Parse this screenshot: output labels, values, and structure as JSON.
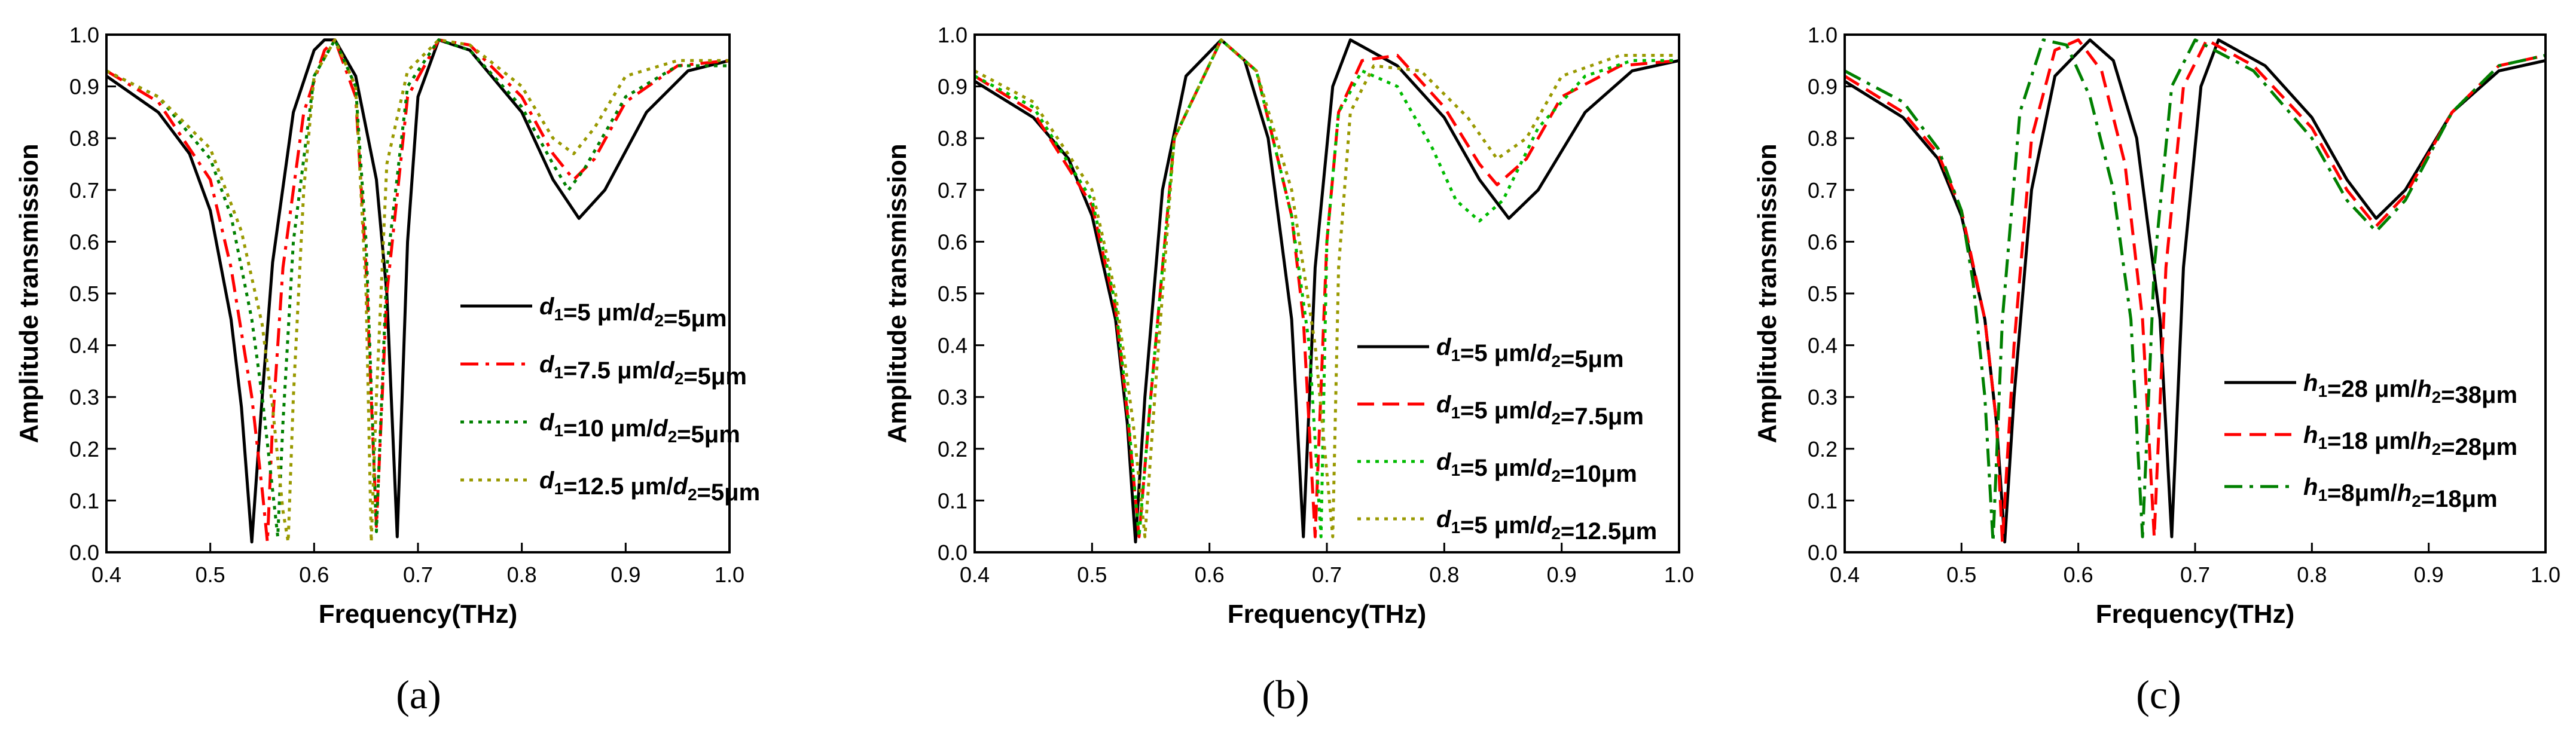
{
  "chart_data": [
    {
      "type": "line",
      "panel_label": "(a)",
      "xlabel": "Frequency(THz)",
      "ylabel": "Amplitude transmission",
      "xlim": [
        0.4,
        1.0
      ],
      "ylim": [
        0.0,
        1.0
      ],
      "xticks": [
        "0.4",
        "0.5",
        "0.6",
        "0.7",
        "0.8",
        "0.9",
        "1.0"
      ],
      "yticks": [
        "0.0",
        "0.1",
        "0.2",
        "0.3",
        "0.4",
        "0.5",
        "0.6",
        "0.7",
        "0.8",
        "0.9",
        "1.0"
      ],
      "legend_position": "center-right",
      "series": [
        {
          "name": "d1=5 μm/d2=5μm",
          "legend": {
            "v1": "d",
            "s1": "1",
            "t1": "=5 μm/",
            "v2": "d",
            "s2": "2",
            "t2": "=5μm"
          },
          "color": "#000000",
          "dash": "solid",
          "x": [
            0.4,
            0.45,
            0.48,
            0.5,
            0.52,
            0.53,
            0.54,
            0.55,
            0.56,
            0.58,
            0.6,
            0.61,
            0.62,
            0.64,
            0.66,
            0.67,
            0.68,
            0.69,
            0.7,
            0.72,
            0.75,
            0.8,
            0.83,
            0.855,
            0.88,
            0.92,
            0.96,
            1.0
          ],
          "y": [
            0.92,
            0.85,
            0.77,
            0.66,
            0.45,
            0.28,
            0.02,
            0.3,
            0.56,
            0.85,
            0.97,
            0.99,
            0.99,
            0.92,
            0.72,
            0.5,
            0.03,
            0.6,
            0.88,
            0.99,
            0.97,
            0.85,
            0.72,
            0.645,
            0.7,
            0.85,
            0.93,
            0.95
          ]
        },
        {
          "name": "d1=7.5 μm/d2=5μm",
          "legend": {
            "v1": "d",
            "s1": "1",
            "t1": "=7.5 μm/",
            "v2": "d",
            "s2": "2",
            "t2": "=5μm"
          },
          "color": "#ff0000",
          "dash": "dashdot",
          "x": [
            0.4,
            0.45,
            0.5,
            0.52,
            0.54,
            0.55,
            0.555,
            0.56,
            0.57,
            0.59,
            0.61,
            0.62,
            0.64,
            0.65,
            0.66,
            0.67,
            0.69,
            0.72,
            0.75,
            0.8,
            0.83,
            0.85,
            0.87,
            0.9,
            0.95,
            1.0
          ],
          "y": [
            0.93,
            0.87,
            0.72,
            0.55,
            0.3,
            0.12,
            0.02,
            0.25,
            0.55,
            0.85,
            0.97,
            0.99,
            0.88,
            0.55,
            0.05,
            0.5,
            0.88,
            0.99,
            0.98,
            0.88,
            0.77,
            0.72,
            0.76,
            0.87,
            0.94,
            0.95
          ]
        },
        {
          "name": "d1=10 μm/d2=5μm",
          "legend": {
            "v1": "d",
            "s1": "1",
            "t1": "=10 μm/",
            "v2": "d",
            "s2": "2",
            "t2": "=5μm"
          },
          "color": "#008000",
          "dash": "dotted",
          "x": [
            0.4,
            0.45,
            0.5,
            0.52,
            0.54,
            0.55,
            0.56,
            0.565,
            0.57,
            0.58,
            0.6,
            0.62,
            0.64,
            0.65,
            0.66,
            0.67,
            0.69,
            0.72,
            0.75,
            0.8,
            0.83,
            0.845,
            0.86,
            0.9,
            0.95,
            1.0
          ],
          "y": [
            0.93,
            0.88,
            0.76,
            0.65,
            0.45,
            0.3,
            0.12,
            0.03,
            0.25,
            0.6,
            0.92,
            0.99,
            0.9,
            0.6,
            0.04,
            0.55,
            0.9,
            0.99,
            0.97,
            0.86,
            0.75,
            0.7,
            0.74,
            0.88,
            0.94,
            0.94
          ]
        },
        {
          "name": "d1=12.5 μm/d2=5μm",
          "legend": {
            "v1": "d",
            "s1": "1",
            "t1": "=12.5 μm/",
            "v2": "d",
            "s2": "2",
            "t2": "=5μm"
          },
          "color": "#999900",
          "dash": "dotted",
          "x": [
            0.4,
            0.45,
            0.5,
            0.53,
            0.55,
            0.56,
            0.57,
            0.575,
            0.58,
            0.59,
            0.6,
            0.62,
            0.64,
            0.65,
            0.655,
            0.66,
            0.67,
            0.69,
            0.72,
            0.75,
            0.8,
            0.83,
            0.85,
            0.87,
            0.9,
            0.95,
            1.0
          ],
          "y": [
            0.93,
            0.88,
            0.78,
            0.62,
            0.44,
            0.28,
            0.08,
            0.02,
            0.3,
            0.7,
            0.92,
            0.99,
            0.9,
            0.5,
            0.02,
            0.3,
            0.75,
            0.93,
            0.99,
            0.98,
            0.9,
            0.8,
            0.77,
            0.82,
            0.92,
            0.95,
            0.95
          ]
        }
      ]
    },
    {
      "type": "line",
      "panel_label": "(b)",
      "xlabel": "Frequency(THz)",
      "ylabel": "Amplitude transmission",
      "xlim": [
        0.4,
        1.0
      ],
      "ylim": [
        0.0,
        1.0
      ],
      "xticks": [
        "0.4",
        "0.5",
        "0.6",
        "0.7",
        "0.8",
        "0.9",
        "1.0"
      ],
      "yticks": [
        "0.0",
        "0.1",
        "0.2",
        "0.3",
        "0.4",
        "0.5",
        "0.6",
        "0.7",
        "0.8",
        "0.9",
        "1.0"
      ],
      "legend_position": "bottom-right",
      "series": [
        {
          "name": "d1=5 μm/d2=5μm",
          "legend": {
            "v1": "d",
            "s1": "1",
            "t1": "=5 μm/",
            "v2": "d",
            "s2": "2",
            "t2": "=5μm"
          },
          "color": "#000000",
          "dash": "solid",
          "x": [
            0.4,
            0.45,
            0.48,
            0.5,
            0.52,
            0.53,
            0.537,
            0.545,
            0.56,
            0.58,
            0.61,
            0.63,
            0.65,
            0.67,
            0.68,
            0.69,
            0.705,
            0.72,
            0.76,
            0.8,
            0.83,
            0.855,
            0.88,
            0.92,
            0.96,
            1.0
          ],
          "y": [
            0.91,
            0.84,
            0.76,
            0.65,
            0.45,
            0.25,
            0.02,
            0.3,
            0.7,
            0.92,
            0.99,
            0.95,
            0.8,
            0.45,
            0.03,
            0.55,
            0.9,
            0.99,
            0.94,
            0.84,
            0.72,
            0.645,
            0.7,
            0.85,
            0.93,
            0.95
          ]
        },
        {
          "name": "d1=5 μm/d2=7.5μm",
          "legend": {
            "v1": "d",
            "s1": "1",
            "t1": "=5 μm/",
            "v2": "d",
            "s2": "2",
            "t2": "=7.5μm"
          },
          "color": "#ff0000",
          "dash": "dashed",
          "x": [
            0.4,
            0.45,
            0.5,
            0.52,
            0.53,
            0.54,
            0.55,
            0.57,
            0.61,
            0.64,
            0.67,
            0.68,
            0.69,
            0.7,
            0.71,
            0.73,
            0.76,
            0.8,
            0.83,
            0.845,
            0.87,
            0.9,
            0.95,
            1.0
          ],
          "y": [
            0.92,
            0.85,
            0.67,
            0.47,
            0.27,
            0.03,
            0.3,
            0.8,
            0.99,
            0.93,
            0.65,
            0.45,
            0.03,
            0.6,
            0.85,
            0.95,
            0.96,
            0.86,
            0.75,
            0.71,
            0.76,
            0.88,
            0.94,
            0.95
          ]
        },
        {
          "name": "d1=5 μm/d2=10μm",
          "legend": {
            "v1": "d",
            "s1": "1",
            "t1": "=5 μm/",
            "v2": "d",
            "s2": "2",
            "t2": "=10μm"
          },
          "color": "#00bb00",
          "dash": "dotted",
          "x": [
            0.4,
            0.45,
            0.5,
            0.52,
            0.53,
            0.54,
            0.55,
            0.57,
            0.61,
            0.64,
            0.67,
            0.685,
            0.695,
            0.7,
            0.71,
            0.73,
            0.76,
            0.79,
            0.81,
            0.83,
            0.85,
            0.88,
            0.92,
            0.96,
            1.0
          ],
          "y": [
            0.92,
            0.86,
            0.68,
            0.48,
            0.28,
            0.03,
            0.3,
            0.8,
            0.99,
            0.93,
            0.65,
            0.4,
            0.03,
            0.6,
            0.85,
            0.93,
            0.9,
            0.78,
            0.68,
            0.64,
            0.68,
            0.82,
            0.92,
            0.95,
            0.95
          ]
        },
        {
          "name": "d1=5 μm/d2=12.5μm",
          "legend": {
            "v1": "d",
            "s1": "1",
            "t1": "=5 μm/",
            "v2": "d",
            "s2": "2",
            "t2": "=12.5μm"
          },
          "color": "#999900",
          "dash": "dotted",
          "x": [
            0.4,
            0.45,
            0.5,
            0.52,
            0.535,
            0.545,
            0.555,
            0.57,
            0.61,
            0.64,
            0.67,
            0.69,
            0.705,
            0.71,
            0.72,
            0.74,
            0.78,
            0.82,
            0.845,
            0.87,
            0.9,
            0.95,
            1.0
          ],
          "y": [
            0.93,
            0.87,
            0.7,
            0.5,
            0.25,
            0.03,
            0.35,
            0.8,
            0.99,
            0.93,
            0.7,
            0.4,
            0.03,
            0.55,
            0.85,
            0.94,
            0.93,
            0.84,
            0.76,
            0.8,
            0.92,
            0.96,
            0.96
          ]
        }
      ]
    },
    {
      "type": "line",
      "panel_label": "(c)",
      "xlabel": "Frequency(THz)",
      "ylabel": "Amplitude transmission",
      "xlim": [
        0.4,
        1.0
      ],
      "ylim": [
        0.0,
        1.0
      ],
      "xticks": [
        "0.4",
        "0.5",
        "0.6",
        "0.7",
        "0.8",
        "0.9",
        "1.0"
      ],
      "yticks": [
        "0.0",
        "0.1",
        "0.2",
        "0.3",
        "0.4",
        "0.5",
        "0.6",
        "0.7",
        "0.8",
        "0.9",
        "1.0"
      ],
      "legend_position": "bottom-right",
      "series": [
        {
          "name": "h1=28 μm/h2=38μm",
          "legend": {
            "v1": "h",
            "s1": "1",
            "t1": "=28 μm/",
            "v2": "h",
            "s2": "2",
            "t2": "=38μm"
          },
          "color": "#000000",
          "dash": "solid",
          "x": [
            0.4,
            0.45,
            0.48,
            0.5,
            0.52,
            0.53,
            0.537,
            0.545,
            0.56,
            0.58,
            0.61,
            0.63,
            0.65,
            0.67,
            0.68,
            0.69,
            0.705,
            0.72,
            0.76,
            0.8,
            0.83,
            0.855,
            0.88,
            0.92,
            0.96,
            1.0
          ],
          "y": [
            0.91,
            0.84,
            0.76,
            0.65,
            0.45,
            0.25,
            0.02,
            0.3,
            0.7,
            0.92,
            0.99,
            0.95,
            0.8,
            0.45,
            0.03,
            0.55,
            0.9,
            0.99,
            0.94,
            0.84,
            0.72,
            0.645,
            0.7,
            0.85,
            0.93,
            0.95
          ]
        },
        {
          "name": "h1=18 μm/h2=28μm",
          "legend": {
            "v1": "h",
            "s1": "1",
            "t1": "=18 μm/",
            "v2": "h",
            "s2": "2",
            "t2": "=28μm"
          },
          "color": "#ff0000",
          "dash": "dashed",
          "x": [
            0.4,
            0.45,
            0.48,
            0.5,
            0.52,
            0.53,
            0.535,
            0.545,
            0.56,
            0.58,
            0.6,
            0.62,
            0.64,
            0.655,
            0.665,
            0.675,
            0.69,
            0.71,
            0.75,
            0.8,
            0.83,
            0.855,
            0.88,
            0.92,
            0.96,
            1.0
          ],
          "y": [
            0.92,
            0.85,
            0.77,
            0.66,
            0.45,
            0.25,
            0.02,
            0.4,
            0.8,
            0.97,
            0.99,
            0.93,
            0.75,
            0.45,
            0.03,
            0.55,
            0.9,
            0.99,
            0.94,
            0.82,
            0.7,
            0.63,
            0.69,
            0.85,
            0.94,
            0.96
          ]
        },
        {
          "name": "h1=8μm/h2=18μm",
          "legend": {
            "v1": "h",
            "s1": "1",
            "t1": "=8μm/",
            "v2": "h",
            "s2": "2",
            "t2": "=18μm"
          },
          "color": "#008000",
          "dash": "dashdot",
          "x": [
            0.4,
            0.45,
            0.48,
            0.5,
            0.51,
            0.52,
            0.527,
            0.535,
            0.55,
            0.57,
            0.59,
            0.61,
            0.63,
            0.645,
            0.655,
            0.665,
            0.68,
            0.7,
            0.75,
            0.8,
            0.83,
            0.855,
            0.88,
            0.92,
            0.96,
            1.0
          ],
          "y": [
            0.93,
            0.87,
            0.78,
            0.66,
            0.52,
            0.3,
            0.02,
            0.45,
            0.85,
            0.99,
            0.98,
            0.88,
            0.7,
            0.45,
            0.03,
            0.55,
            0.9,
            0.99,
            0.93,
            0.8,
            0.68,
            0.62,
            0.68,
            0.85,
            0.94,
            0.96
          ]
        }
      ]
    }
  ]
}
